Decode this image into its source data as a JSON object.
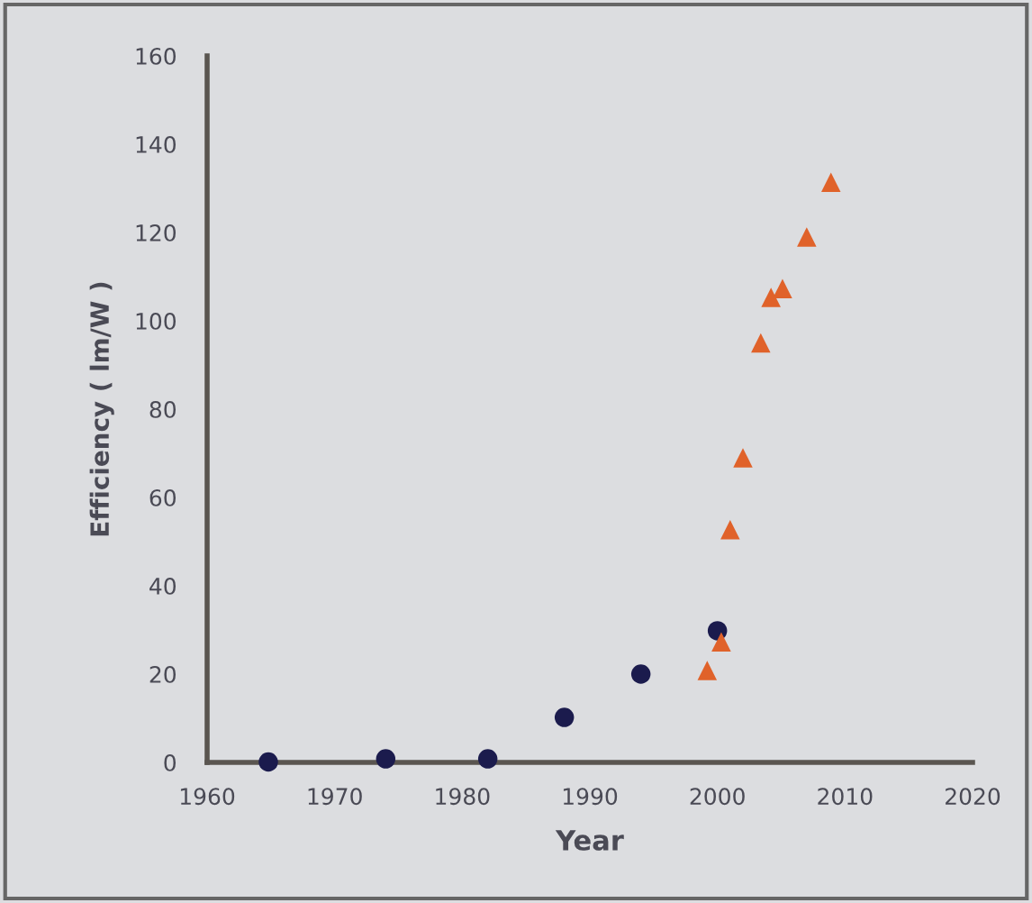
{
  "chart_data": {
    "type": "scatter",
    "xlabel": "Year",
    "ylabel": "Efficiency ( lm/W )",
    "xlim": [
      1960,
      2020
    ],
    "xticks": [
      1960,
      1970,
      1980,
      1990,
      2000,
      2010,
      2020
    ],
    "ylim": [
      0,
      160
    ],
    "yticks": [
      0,
      20,
      40,
      60,
      80,
      100,
      120,
      140,
      160
    ],
    "grid": false,
    "series": [
      {
        "color": "#1b1b4d",
        "marker": "circle",
        "x": [
          1964.8,
          1974,
          1982,
          1988,
          1994,
          2000
        ],
        "values": [
          0.1,
          0.8,
          0.8,
          10.2,
          20,
          29.8
        ]
      },
      {
        "color": "#e0622a",
        "marker": "triangle",
        "x": [
          1999.2,
          2000.3,
          2001,
          2002,
          2003.4,
          2004.2,
          2005.1,
          2007,
          2008.9
        ],
        "values": [
          20.8,
          27.3,
          52.7,
          69,
          95,
          105.3,
          107.3,
          119,
          131.4
        ]
      }
    ]
  }
}
